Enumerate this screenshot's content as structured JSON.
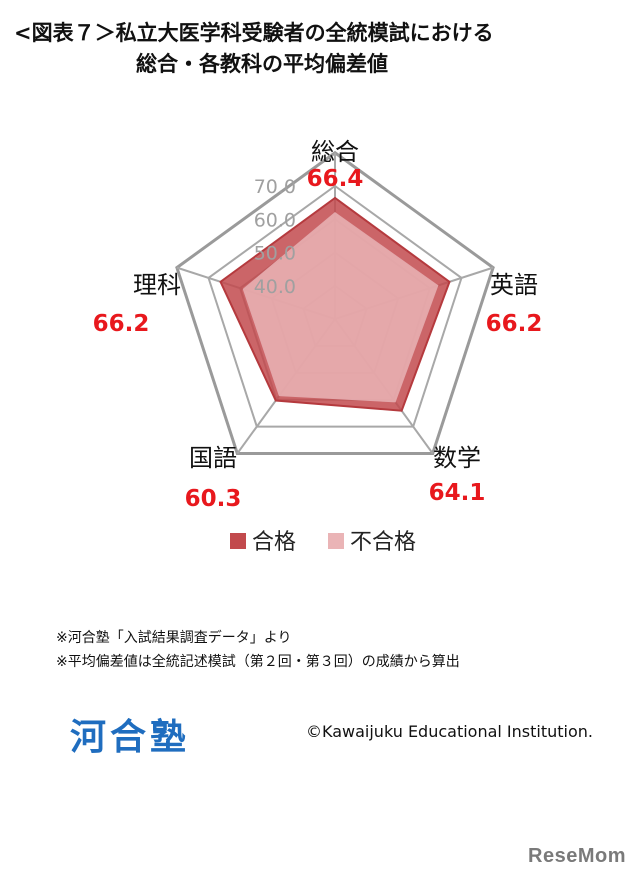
{
  "header": {
    "title_line1": "<図表７＞私立大医学科受験者の全統模試における",
    "title_line2": "総合・各教科の平均偏差値"
  },
  "chart_data": {
    "type": "radar",
    "categories": [
      "総合",
      "英語",
      "数学",
      "国語",
      "理科"
    ],
    "series": [
      {
        "name": "合格",
        "values": [
          66.4,
          66.2,
          64.1,
          60.3,
          66.2
        ],
        "color": "#c24a4d"
      },
      {
        "name": "不合格",
        "values": [
          62.0,
          62.5,
          60.8,
          58.5,
          59.0
        ],
        "color": "#eab4b6"
      }
    ],
    "data_labels": [
      "66.4",
      "66.2",
      "64.1",
      "60.3",
      "66.2"
    ],
    "ticks": [
      "40.0",
      "50.0",
      "60.0",
      "70.0"
    ],
    "rlim": [
      30,
      70
    ],
    "grid_levels": [
      30,
      40,
      50,
      60,
      70,
      80
    ],
    "label_color": "#e8181d",
    "legend_placement": "bottom"
  },
  "notes": [
    "※河合塾「入試結果調査データ」より",
    "※平均偏差値は全統記述模試（第２回・第３回）の成績から算出"
  ],
  "footer": {
    "logo": "河合塾",
    "copyright": "©Kawaijuku Educational Institution."
  },
  "watermark": "ReseMom"
}
